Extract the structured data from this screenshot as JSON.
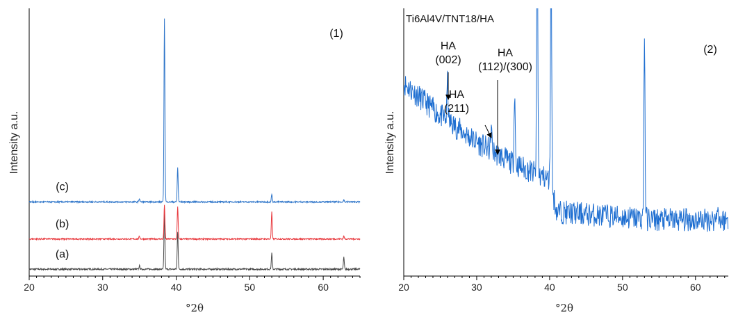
{
  "chart_data": [
    {
      "type": "line",
      "panel_label": "(1)",
      "xlabel": "°2θ",
      "ylabel": "Intensity a.u.",
      "xlim": [
        20,
        65
      ],
      "x_ticks": [
        20,
        30,
        40,
        50,
        60
      ],
      "x_tick_labels": [
        "20",
        "30",
        "40",
        "50",
        "60"
      ],
      "grid": false,
      "series": [
        {
          "name": "(a)",
          "color": "#4a4a4a",
          "baseline": 0.0,
          "noise": 0.012,
          "peaks": [
            {
              "x": 35.0,
              "height": 0.05
            },
            {
              "x": 38.4,
              "height": 0.83
            },
            {
              "x": 40.2,
              "height": 0.55
            },
            {
              "x": 53.0,
              "height": 0.23
            },
            {
              "x": 62.8,
              "height": 0.17
            }
          ]
        },
        {
          "name": "(b)",
          "color": "#e8383d",
          "baseline": 0.44,
          "noise": 0.01,
          "peaks": [
            {
              "x": 35.0,
              "height": 0.04
            },
            {
              "x": 38.4,
              "height": 0.5
            },
            {
              "x": 40.2,
              "height": 0.47
            },
            {
              "x": 53.0,
              "height": 0.39
            },
            {
              "x": 62.8,
              "height": 0.04
            }
          ]
        },
        {
          "name": "(c)",
          "color": "#2e75c9",
          "baseline": 0.98,
          "noise": 0.01,
          "peaks": [
            {
              "x": 35.0,
              "height": 0.05
            },
            {
              "x": 38.4,
              "height": 2.68
            },
            {
              "x": 40.2,
              "height": 0.5
            },
            {
              "x": 53.0,
              "height": 0.11
            },
            {
              "x": 62.8,
              "height": 0.03
            }
          ]
        }
      ],
      "ylim": [
        -0.1,
        3.8
      ]
    },
    {
      "type": "line",
      "title": "Ti6Al4V/TNT18/HA",
      "panel_label": "(2)",
      "xlabel": "°2θ",
      "ylabel": "Intensity a.u.",
      "xlim": [
        20,
        64.5
      ],
      "x_ticks": [
        20,
        30,
        40,
        50,
        60
      ],
      "x_tick_labels": [
        "20",
        "30",
        "40",
        "50",
        "60"
      ],
      "ylim": [
        0,
        100
      ],
      "grid": false,
      "series": [
        {
          "name": "",
          "color": "#1f6fd1",
          "background": [
            [
              20,
              72
            ],
            [
              25,
              60
            ],
            [
              30,
              50
            ],
            [
              35,
              42
            ],
            [
              40,
              36
            ],
            [
              41,
              24
            ],
            [
              50,
              22
            ],
            [
              55,
              21
            ],
            [
              64.5,
              21
            ]
          ],
          "noise": 4.5,
          "peaks": [
            {
              "x": 26.0,
              "height": 15
            },
            {
              "x": 32.0,
              "height": 9
            },
            {
              "x": 35.2,
              "height": 28
            },
            {
              "x": 38.3,
              "height": 95
            },
            {
              "x": 40.2,
              "height": 95
            },
            {
              "x": 53.0,
              "height": 70
            },
            {
              "x": 63.0,
              "height": 7
            }
          ]
        }
      ],
      "annotations": [
        {
          "lines": [
            "HA",
            "(002)"
          ],
          "arrow_to_x": 26.0
        },
        {
          "lines": [
            "HA",
            "(211)"
          ],
          "arrow_to_x": 32.0
        },
        {
          "lines": [
            "HA",
            "(112)/(300)"
          ],
          "arrow_to_x": 32.8
        }
      ]
    }
  ]
}
